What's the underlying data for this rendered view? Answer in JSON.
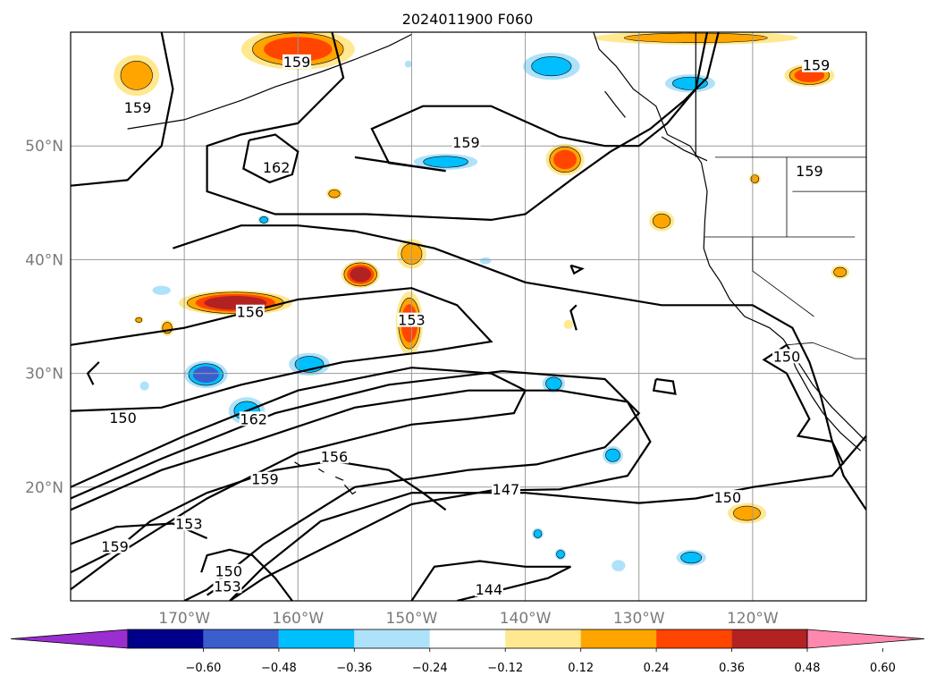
{
  "chart_data": {
    "type": "map",
    "title": "2024011900 F060",
    "projection": "lat-lon",
    "extent": {
      "lon": [
        -180,
        -110
      ],
      "lat": [
        10,
        60
      ]
    },
    "grid": true,
    "lat_ticks": [
      {
        "value": 50,
        "label": "50°N"
      },
      {
        "value": 40,
        "label": "40°N"
      },
      {
        "value": 30,
        "label": "30°N"
      },
      {
        "value": 20,
        "label": "20°N"
      }
    ],
    "lon_ticks": [
      {
        "value": -170,
        "label": "170°W"
      },
      {
        "value": -160,
        "label": "160°W"
      },
      {
        "value": -150,
        "label": "150°W"
      },
      {
        "value": -140,
        "label": "140°W"
      },
      {
        "value": -130,
        "label": "130°W"
      },
      {
        "value": -120,
        "label": "120°W"
      }
    ],
    "contour_labels": [
      {
        "text": "159",
        "lon": -160.1,
        "lat": 57.1
      },
      {
        "text": "159",
        "lon": -174.1,
        "lat": 53.1
      },
      {
        "text": "162",
        "lon": -161.9,
        "lat": 47.8
      },
      {
        "text": "159",
        "lon": -145.2,
        "lat": 50.0
      },
      {
        "text": "159",
        "lon": -114.4,
        "lat": 56.8
      },
      {
        "text": "159",
        "lon": -115.0,
        "lat": 47.5
      },
      {
        "text": "156",
        "lon": -164.2,
        "lat": 35.1
      },
      {
        "text": "153",
        "lon": -150.0,
        "lat": 34.4
      },
      {
        "text": "150",
        "lon": -117.0,
        "lat": 31.2
      },
      {
        "text": "150",
        "lon": -175.4,
        "lat": 25.8
      },
      {
        "text": "162",
        "lon": -163.9,
        "lat": 25.7
      },
      {
        "text": "156",
        "lon": -156.8,
        "lat": 22.4
      },
      {
        "text": "159",
        "lon": -162.9,
        "lat": 20.4
      },
      {
        "text": "147",
        "lon": -141.7,
        "lat": 19.5
      },
      {
        "text": "150",
        "lon": -122.2,
        "lat": 18.8
      },
      {
        "text": "153",
        "lon": -169.6,
        "lat": 16.5
      },
      {
        "text": "159",
        "lon": -176.1,
        "lat": 14.5
      },
      {
        "text": "150",
        "lon": -166.1,
        "lat": 12.3
      },
      {
        "text": "153",
        "lon": -166.2,
        "lat": 11.0
      },
      {
        "text": "144",
        "lon": -143.2,
        "lat": 10.7
      }
    ],
    "colorbar": {
      "ticks": [
        "−0.60",
        "−0.48",
        "−0.36",
        "−0.24",
        "−0.12",
        "0.12",
        "0.24",
        "0.36",
        "0.48",
        "0.60"
      ],
      "colors": [
        "#9a2ecf",
        "#00008b",
        "#3a5fcd",
        "#00bfff",
        "#aee2fa",
        "#ffffff",
        "#ffe88f",
        "#ffa500",
        "#ff4500",
        "#b22222",
        "#ff88ae"
      ],
      "extend": "both"
    }
  }
}
